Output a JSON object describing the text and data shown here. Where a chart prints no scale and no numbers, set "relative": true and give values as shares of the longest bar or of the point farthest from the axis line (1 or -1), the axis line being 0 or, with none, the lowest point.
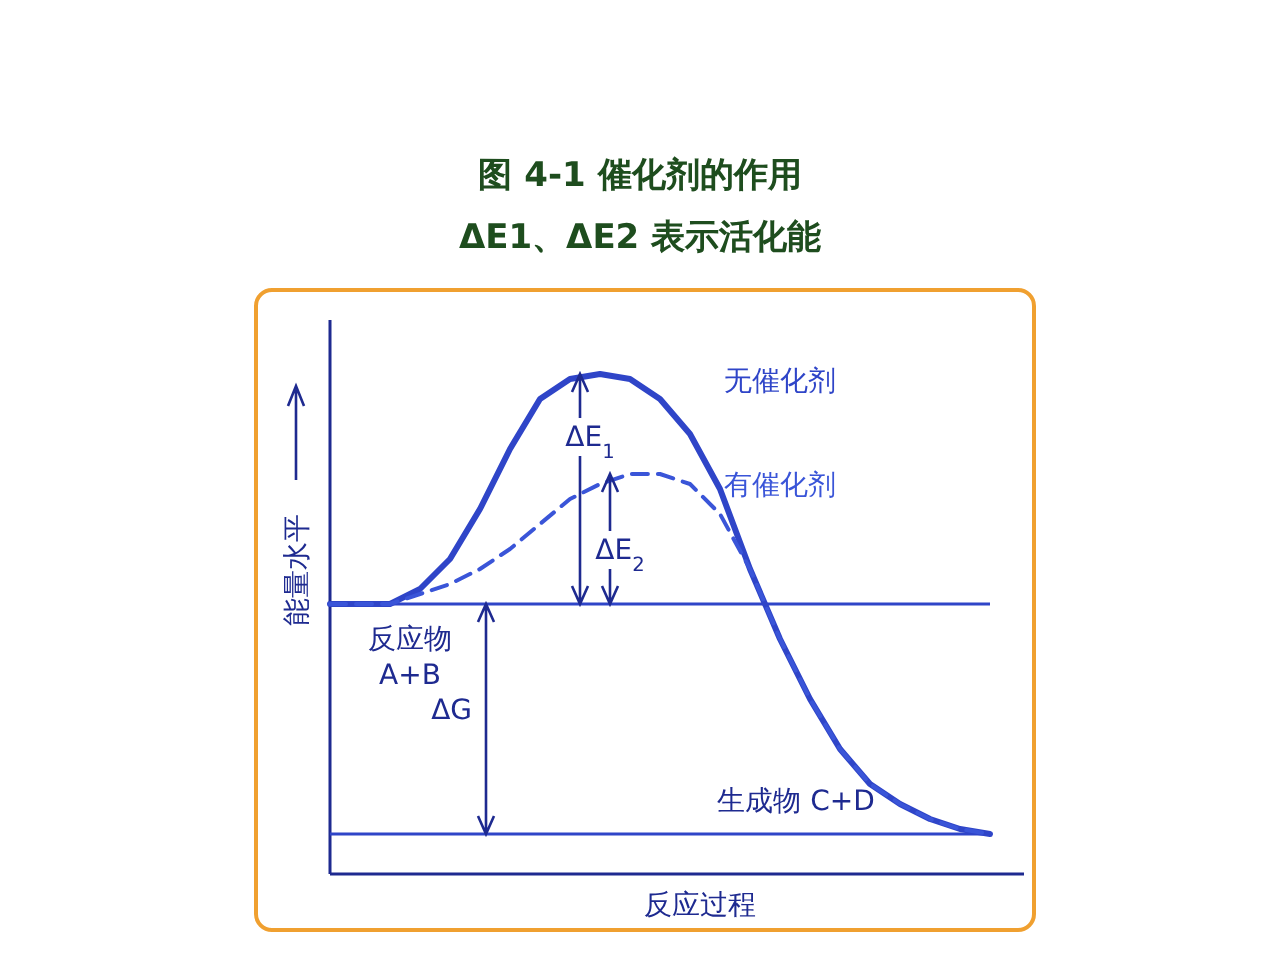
{
  "chart_data": {
    "type": "line",
    "relative": true,
    "title": "图 4-1 催化剂的作用",
    "subtitle": "ΔE1、ΔE2 表示活化能",
    "xlabel": "反应过程",
    "ylabel": "能量水平",
    "categories": [
      null,
      null,
      null,
      null,
      null,
      null,
      null,
      null,
      null,
      null,
      null,
      null,
      null,
      null,
      null,
      null,
      null,
      null,
      null,
      null,
      null,
      null,
      null
    ],
    "series": [
      {
        "name": "无催化剂",
        "color": "#2f45c8",
        "line_style": "solid",
        "values": [
          0.54,
          0.54,
          0.54,
          0.57,
          0.63,
          0.73,
          0.85,
          0.95,
          0.99,
          1,
          0.99,
          0.95,
          0.88,
          0.77,
          0.61,
          0.47,
          0.35,
          0.25,
          0.18,
          0.14,
          0.11,
          0.09,
          0.08
        ]
      },
      {
        "name": "有催化剂",
        "color": "#3a55d8",
        "line_style": "dashed",
        "values": [
          0.54,
          0.54,
          0.54,
          0.56,
          0.58,
          0.61,
          0.65,
          0.7,
          0.75,
          0.78,
          0.8,
          0.8,
          0.78,
          0.72,
          0.61,
          0.47,
          0.35,
          0.25,
          0.18,
          0.14,
          0.11,
          0.09,
          0.08
        ]
      }
    ],
    "ref_lines": [
      {
        "axis": "y",
        "value": 0.54,
        "color": "#2f45c8"
      },
      {
        "axis": "y",
        "value": 0.08,
        "color": "#2f45c8"
      }
    ],
    "annotations": [
      "ΔE$_{1}$",
      "ΔE$_{2}$",
      "ΔG",
      "反应物",
      "A+B",
      "生成物 C+D"
    ]
  }
}
